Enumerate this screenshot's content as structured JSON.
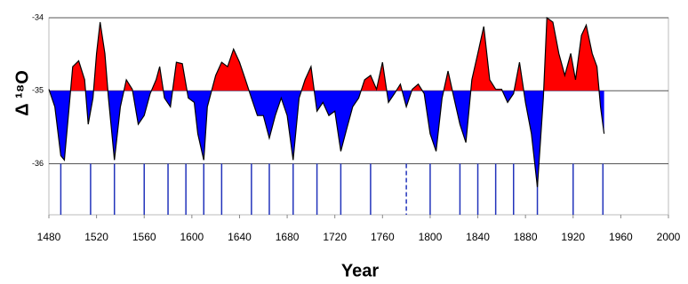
{
  "chart_data": {
    "type": "area",
    "x_label": "Year",
    "y_label": "Δ ¹⁸O",
    "x": [
      1480,
      1485,
      1490,
      1493,
      1497,
      1500,
      1505,
      1510,
      1513,
      1517,
      1520,
      1523,
      1527,
      1530,
      1535,
      1540,
      1545,
      1550,
      1555,
      1560,
      1565,
      1570,
      1573,
      1577,
      1582,
      1587,
      1592,
      1597,
      1602,
      1605,
      1610,
      1613,
      1620,
      1625,
      1630,
      1635,
      1640,
      1645,
      1650,
      1655,
      1660,
      1665,
      1670,
      1675,
      1680,
      1685,
      1690,
      1695,
      1700,
      1705,
      1710,
      1715,
      1720,
      1725,
      1730,
      1735,
      1740,
      1745,
      1750,
      1755,
      1760,
      1765,
      1770,
      1775,
      1780,
      1785,
      1790,
      1795,
      1800,
      1805,
      1810,
      1815,
      1820,
      1825,
      1830,
      1835,
      1840,
      1845,
      1850,
      1855,
      1860,
      1865,
      1870,
      1875,
      1880,
      1885,
      1890,
      1895,
      1898,
      1903,
      1908,
      1913,
      1918,
      1922,
      1927,
      1931,
      1936,
      1940,
      1943,
      1946
    ],
    "values": [
      -34.98,
      -35.22,
      -35.89,
      -35.95,
      -35.22,
      -34.67,
      -34.59,
      -34.85,
      -35.46,
      -35.1,
      -34.49,
      -34.06,
      -34.49,
      -35.1,
      -35.95,
      -35.22,
      -34.85,
      -34.98,
      -35.46,
      -35.34,
      -35.04,
      -34.85,
      -34.67,
      -35.1,
      -35.22,
      -34.61,
      -34.63,
      -35.1,
      -35.16,
      -35.59,
      -35.95,
      -35.22,
      -34.79,
      -34.61,
      -34.67,
      -34.43,
      -34.61,
      -34.85,
      -35.1,
      -35.34,
      -35.34,
      -35.65,
      -35.34,
      -35.1,
      -35.34,
      -35.95,
      -35.1,
      -34.85,
      -34.67,
      -35.28,
      -35.16,
      -35.34,
      -35.28,
      -35.83,
      -35.52,
      -35.22,
      -35.1,
      -34.85,
      -34.79,
      -34.98,
      -34.61,
      -35.16,
      -35.04,
      -34.91,
      -35.22,
      -34.98,
      -34.91,
      -35.04,
      -35.59,
      -35.83,
      -35.1,
      -34.73,
      -35.1,
      -35.46,
      -35.71,
      -34.85,
      -34.49,
      -34.12,
      -34.85,
      -34.98,
      -34.98,
      -35.16,
      -35.04,
      -34.61,
      -35.16,
      -35.59,
      -36.32,
      -35.1,
      -34.0,
      -34.06,
      -34.49,
      -34.79,
      -34.49,
      -34.85,
      -34.24,
      -34.1,
      -34.49,
      -34.67,
      -35.22,
      -35.59
    ],
    "baseline": -35,
    "above_color": "#ff0000",
    "below_color": "#0000ff",
    "line_color": "#000000",
    "event_years": [
      1490,
      1515,
      1535,
      1560,
      1580,
      1595,
      1610,
      1625,
      1650,
      1665,
      1685,
      1705,
      1725,
      1750,
      1800,
      1825,
      1840,
      1855,
      1870,
      1890,
      1920,
      1945
    ],
    "dashed_event_years": [
      1780
    ],
    "event_color": "#2233bb",
    "xlim": [
      1480,
      2000
    ],
    "xticks": [
      1480,
      1520,
      1560,
      1600,
      1640,
      1680,
      1720,
      1760,
      1800,
      1840,
      1880,
      1920,
      1960,
      2000
    ],
    "ylim": [
      -36.7,
      -34
    ],
    "yticks": [
      -36,
      -35,
      -34
    ],
    "grid": true
  }
}
